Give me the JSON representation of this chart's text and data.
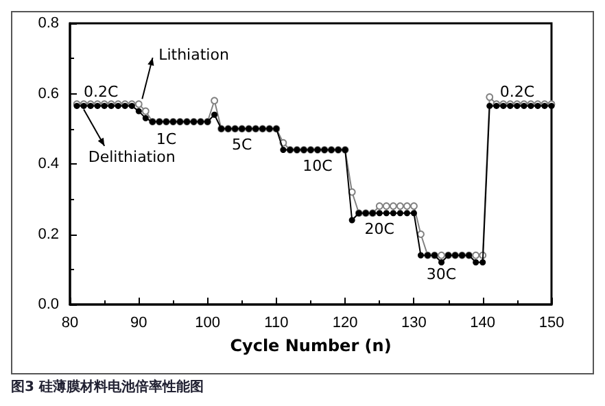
{
  "chart_data": {
    "type": "line",
    "xlabel": "Cycle Number (n)",
    "x": [
      81,
      82,
      83,
      84,
      85,
      86,
      87,
      88,
      89,
      90,
      91,
      92,
      93,
      94,
      95,
      96,
      97,
      98,
      99,
      100,
      101,
      102,
      103,
      104,
      105,
      106,
      107,
      108,
      109,
      110,
      111,
      112,
      113,
      114,
      115,
      116,
      117,
      118,
      119,
      120,
      121,
      122,
      123,
      124,
      125,
      126,
      127,
      128,
      129,
      130,
      131,
      132,
      133,
      134,
      135,
      136,
      137,
      138,
      139,
      140,
      141,
      142,
      143,
      144,
      145,
      146,
      147,
      148,
      149,
      150
    ],
    "series": [
      {
        "color": "#000000",
        "marker": "circle",
        "values": [
          0.565,
          0.565,
          0.565,
          0.565,
          0.565,
          0.565,
          0.565,
          0.565,
          0.565,
          0.55,
          0.53,
          0.52,
          0.52,
          0.52,
          0.52,
          0.52,
          0.52,
          0.52,
          0.52,
          0.52,
          0.54,
          0.5,
          0.5,
          0.5,
          0.5,
          0.5,
          0.5,
          0.5,
          0.5,
          0.5,
          0.44,
          0.44,
          0.44,
          0.44,
          0.44,
          0.44,
          0.44,
          0.44,
          0.44,
          0.44,
          0.24,
          0.26,
          0.26,
          0.26,
          0.26,
          0.26,
          0.26,
          0.26,
          0.26,
          0.26,
          0.14,
          0.14,
          0.14,
          0.12,
          0.14,
          0.14,
          0.14,
          0.14,
          0.12,
          0.12,
          0.565,
          0.565,
          0.565,
          0.565,
          0.565,
          0.565,
          0.565,
          0.565,
          0.565,
          0.565
        ]
      },
      {
        "color": "#808080",
        "marker": "circle",
        "values": [
          0.57,
          0.57,
          0.57,
          0.57,
          0.57,
          0.57,
          0.57,
          0.57,
          0.57,
          0.57,
          0.55,
          0.52,
          0.52,
          0.52,
          0.52,
          0.52,
          0.52,
          0.52,
          0.52,
          0.52,
          0.58,
          0.5,
          0.5,
          0.5,
          0.5,
          0.5,
          0.5,
          0.5,
          0.5,
          0.5,
          0.46,
          0.44,
          0.44,
          0.44,
          0.44,
          0.44,
          0.44,
          0.44,
          0.44,
          0.44,
          0.32,
          0.26,
          0.26,
          0.26,
          0.28,
          0.28,
          0.28,
          0.28,
          0.28,
          0.28,
          0.2,
          0.14,
          0.14,
          0.14,
          0.14,
          0.14,
          0.14,
          0.14,
          0.14,
          0.14,
          0.59,
          0.57,
          0.57,
          0.57,
          0.57,
          0.57,
          0.57,
          0.57,
          0.57,
          0.57
        ]
      }
    ],
    "xlim": [
      80,
      150
    ],
    "xticks": [
      80,
      90,
      100,
      110,
      120,
      130,
      140,
      150
    ],
    "ylim": [
      0,
      0.8
    ],
    "yticks": [
      {
        "value": 0,
        "label": "0.0"
      },
      {
        "value": 0.2,
        "label": "0.2"
      },
      {
        "value": 0.4,
        "label": "0.4"
      },
      {
        "value": 0.6,
        "label": "0.6"
      },
      {
        "value": 0.8,
        "label": "0.8"
      }
    ],
    "grid": false,
    "annotations": [
      "0.2C",
      "Lithiation",
      "Delithiation",
      "1C",
      "5C",
      "10C",
      "20C",
      "30C",
      "0.2C",
      "图3 硅薄膜材料电池倍率性能图"
    ]
  }
}
